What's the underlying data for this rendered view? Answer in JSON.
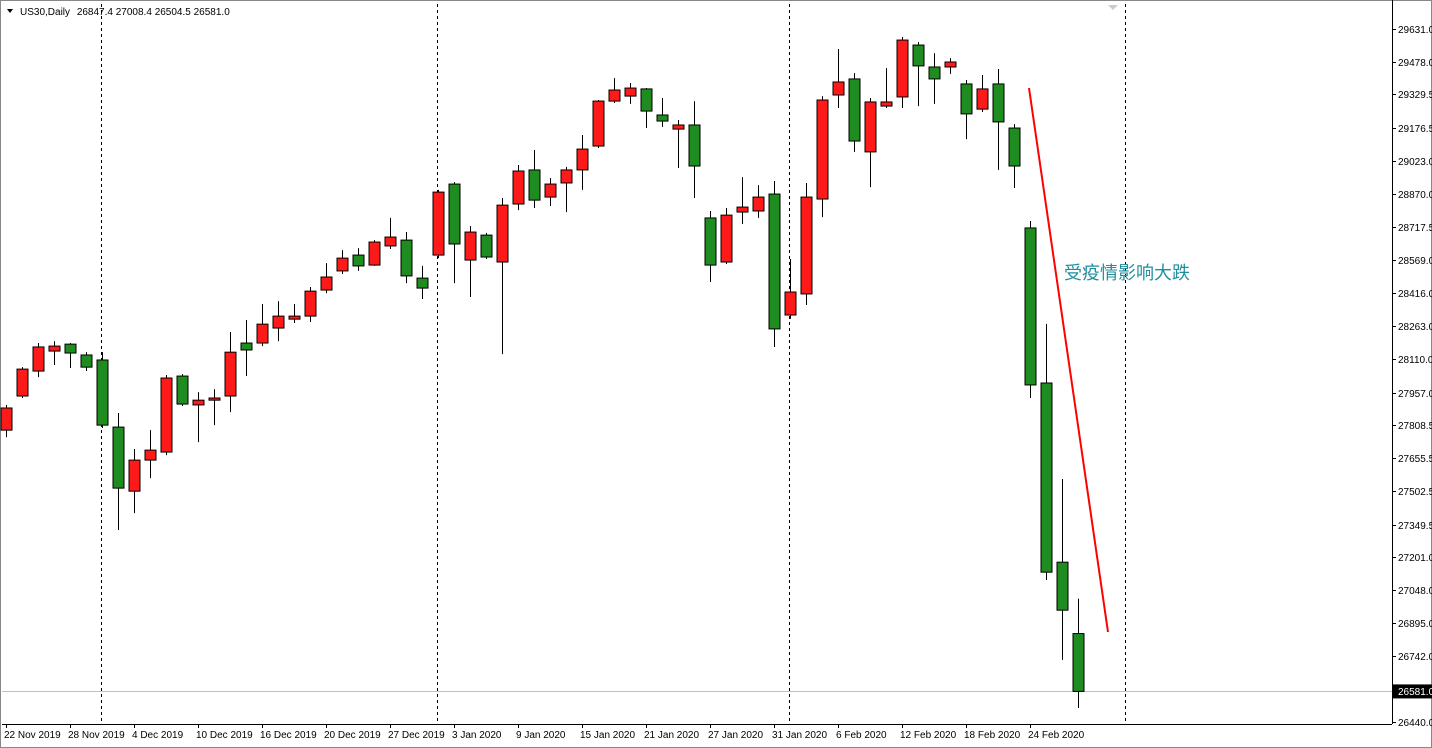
{
  "chart_data": {
    "type": "candlestick",
    "title": "US30,Daily",
    "ohlc_labels": [
      "26847.4",
      "27008.4",
      "26504.5",
      "26581.0"
    ],
    "annotation": "受疫情影响大跌",
    "up_color": "#ff1a1a",
    "down_color": "#1e8c1e",
    "categories": [
      "22 Nov 2019",
      null,
      null,
      null,
      "28 Nov 2019",
      null,
      null,
      null,
      "4 Dec 2019",
      null,
      null,
      null,
      "10 Dec 2019",
      null,
      null,
      null,
      "16 Dec 2019",
      null,
      null,
      null,
      "20 Dec 2019",
      null,
      null,
      null,
      "27 Dec 2019",
      null,
      null,
      null,
      "3 Jan 2020",
      null,
      null,
      null,
      "9 Jan 2020",
      null,
      null,
      null,
      "15 Jan 2020",
      null,
      null,
      null,
      "21 Jan 2020",
      null,
      null,
      null,
      "27 Jan 2020",
      null,
      null,
      null,
      "31 Jan 2020",
      null,
      null,
      null,
      "6 Feb 2020",
      null,
      null,
      null,
      "12 Feb 2020",
      null,
      null,
      null,
      "18 Feb 2020",
      null,
      null,
      null,
      "24 Feb 2020",
      null,
      null,
      null
    ],
    "open": [
      27784,
      27941,
      28056,
      28148,
      28180,
      28130,
      28107,
      27798,
      27503,
      27646,
      27683,
      28033,
      27900,
      27922,
      27941,
      28185,
      28185,
      28254,
      28295,
      28309,
      28429,
      28517,
      28590,
      28544,
      28632,
      28659,
      28484,
      28590,
      28917,
      28567,
      28682,
      28558,
      28825,
      28982,
      28857,
      28922,
      28982,
      29092,
      29299,
      29322,
      29355,
      29235,
      29170,
      29189,
      28761,
      28558,
      28788,
      28793,
      28871,
      28314,
      28411,
      28848,
      29327,
      29401,
      29065,
      29276,
      29318,
      29557,
      29456,
      29456,
      29378,
      29262,
      29378,
      29175,
      28715,
      28001,
      27176,
      26847.4
    ],
    "high": [
      27900,
      28074,
      28185,
      28194,
      28185,
      28143,
      28143,
      27863,
      27697,
      27784,
      28038,
      28042,
      27959,
      27973,
      28236,
      28291,
      28365,
      28378,
      28365,
      28443,
      28553,
      28613,
      28622,
      28659,
      28761,
      28696,
      28540,
      28890,
      28926,
      28724,
      28692,
      28853,
      29005,
      29074,
      28945,
      28996,
      29143,
      29304,
      29405,
      29382,
      29359,
      29313,
      29212,
      29299,
      28793,
      28807,
      28949,
      28912,
      28931,
      28572,
      28922,
      29322,
      29539,
      29428,
      29313,
      29451,
      29594,
      29571,
      29520,
      29497,
      29396,
      29419,
      29447,
      29193,
      28747,
      28273,
      27559,
      27008.4
    ],
    "low": [
      27752,
      27932,
      28028,
      28084,
      28070,
      28056,
      27794,
      27324,
      27402,
      27563,
      27669,
      27895,
      27729,
      27807,
      27867,
      28033,
      28171,
      28194,
      28277,
      28282,
      28415,
      28503,
      28517,
      28540,
      28618,
      28461,
      28388,
      28576,
      28461,
      28397,
      28572,
      28134,
      28797,
      28807,
      28816,
      28788,
      28890,
      29083,
      29290,
      29286,
      29175,
      29180,
      28991,
      28853,
      28466,
      28549,
      28733,
      28761,
      28167,
      28296,
      28360,
      28765,
      29267,
      29065,
      28903,
      29267,
      29267,
      29276,
      29286,
      29424,
      29124,
      29249,
      28982,
      28899,
      27932,
      27094,
      26726,
      26504.5
    ],
    "close": [
      27886,
      28065,
      28167,
      28171,
      28139,
      28074,
      27807,
      27517,
      27646,
      27692,
      28024,
      27904,
      27922,
      27932,
      28143,
      28153,
      28272,
      28309,
      28309,
      28424,
      28489,
      28576,
      28540,
      28650,
      28673,
      28494,
      28438,
      28880,
      28641,
      28696,
      28581,
      28820,
      28977,
      28843,
      28917,
      28982,
      29078,
      29299,
      29350,
      29359,
      29253,
      29207,
      29189,
      29000,
      28544,
      28774,
      28811,
      28857,
      28250,
      28420,
      28857,
      29304,
      29387,
      29115,
      29295,
      29295,
      29580,
      29461,
      29401,
      29479,
      29240,
      29355,
      29203,
      29000,
      27992,
      27130,
      26955,
      26581
    ],
    "current_price": {
      "value": 26581,
      "label": "26581.0"
    },
    "ylim": [
      26431,
      29746
    ],
    "yticks": [
      {
        "value": 29631,
        "label": "29631.0"
      },
      {
        "value": 29478,
        "label": "29478.0"
      },
      29329.5,
      29176.5,
      {
        "value": 29023,
        "label": "29023.0"
      },
      {
        "value": 28870,
        "label": "28870.0"
      },
      28717.5,
      {
        "value": 28569,
        "label": "28569.0"
      },
      {
        "value": 28416,
        "label": "28416.0"
      },
      {
        "value": 28263,
        "label": "28263.0"
      },
      {
        "value": 28110,
        "label": "28110.0"
      },
      {
        "value": 27957,
        "label": "27957.0"
      },
      27808.5,
      27655.5,
      27502.5,
      27349.5,
      {
        "value": 27201,
        "label": "27201.0"
      },
      {
        "value": 27048,
        "label": "27048.0"
      },
      {
        "value": 26895,
        "label": "26895.0"
      },
      {
        "value": 26742,
        "label": "26742.0"
      },
      {
        "value": 26440,
        "label": "26440.0"
      }
    ]
  }
}
